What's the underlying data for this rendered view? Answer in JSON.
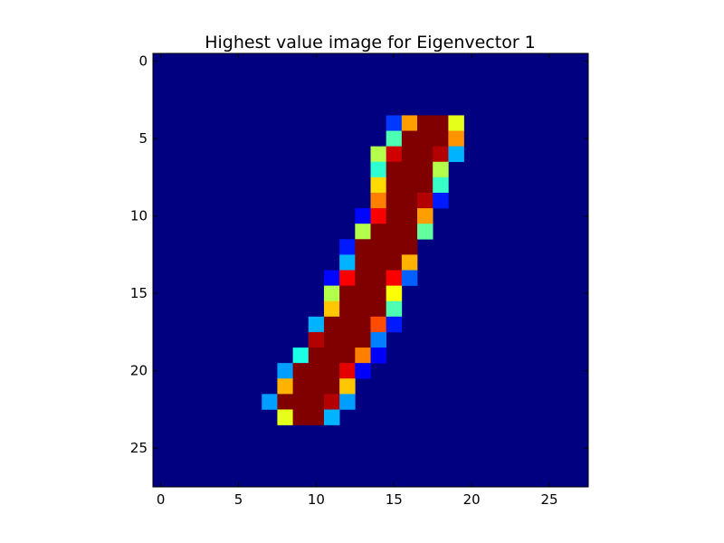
{
  "chart_data": {
    "type": "heatmap",
    "title": "Highest value image for Eigenvector 1",
    "xlabel": "",
    "ylabel": "",
    "rows": 28,
    "cols": 28,
    "xlim": [
      -0.5,
      27.5
    ],
    "ylim": [
      27.5,
      -0.5
    ],
    "x_ticks": [
      0,
      5,
      10,
      15,
      20,
      25
    ],
    "y_ticks": [
      0,
      5,
      10,
      15,
      20,
      25
    ],
    "x_tick_labels": [
      "0",
      "5",
      "10",
      "15",
      "20",
      "25"
    ],
    "y_tick_labels": [
      "0",
      "5",
      "10",
      "15",
      "20",
      "25"
    ],
    "colormap": "jet",
    "value_range": [
      0,
      1
    ],
    "background_value": 0.0,
    "grid": false,
    "cells": [
      [
        4,
        15,
        0.18
      ],
      [
        4,
        16,
        0.72
      ],
      [
        4,
        17,
        1.0
      ],
      [
        4,
        18,
        1.0
      ],
      [
        4,
        19,
        0.6
      ],
      [
        5,
        15,
        0.45
      ],
      [
        5,
        16,
        1.0
      ],
      [
        5,
        17,
        1.0
      ],
      [
        5,
        18,
        1.0
      ],
      [
        5,
        19,
        0.73
      ],
      [
        6,
        14,
        0.55
      ],
      [
        6,
        15,
        0.92
      ],
      [
        6,
        16,
        1.0
      ],
      [
        6,
        17,
        1.0
      ],
      [
        6,
        18,
        0.95
      ],
      [
        6,
        19,
        0.3
      ],
      [
        7,
        14,
        0.42
      ],
      [
        7,
        15,
        1.0
      ],
      [
        7,
        16,
        1.0
      ],
      [
        7,
        17,
        1.0
      ],
      [
        7,
        18,
        0.55
      ],
      [
        8,
        14,
        0.66
      ],
      [
        8,
        15,
        1.0
      ],
      [
        8,
        16,
        1.0
      ],
      [
        8,
        17,
        1.0
      ],
      [
        8,
        18,
        0.43
      ],
      [
        9,
        14,
        0.75
      ],
      [
        9,
        15,
        1.0
      ],
      [
        9,
        16,
        1.0
      ],
      [
        9,
        17,
        0.95
      ],
      [
        9,
        18,
        0.15
      ],
      [
        10,
        13,
        0.13
      ],
      [
        10,
        14,
        0.88
      ],
      [
        10,
        15,
        1.0
      ],
      [
        10,
        16,
        1.0
      ],
      [
        10,
        17,
        0.72
      ],
      [
        11,
        13,
        0.55
      ],
      [
        11,
        14,
        1.0
      ],
      [
        11,
        15,
        1.0
      ],
      [
        11,
        16,
        1.0
      ],
      [
        11,
        17,
        0.47
      ],
      [
        12,
        12,
        0.15
      ],
      [
        12,
        13,
        1.0
      ],
      [
        12,
        14,
        1.0
      ],
      [
        12,
        15,
        1.0
      ],
      [
        12,
        16,
        1.0
      ],
      [
        13,
        12,
        0.3
      ],
      [
        13,
        13,
        1.0
      ],
      [
        13,
        14,
        1.0
      ],
      [
        13,
        15,
        1.0
      ],
      [
        13,
        16,
        0.7
      ],
      [
        14,
        11,
        0.13
      ],
      [
        14,
        12,
        0.88
      ],
      [
        14,
        13,
        1.0
      ],
      [
        14,
        14,
        1.0
      ],
      [
        14,
        15,
        0.88
      ],
      [
        14,
        16,
        0.22
      ],
      [
        15,
        11,
        0.55
      ],
      [
        15,
        12,
        1.0
      ],
      [
        15,
        13,
        1.0
      ],
      [
        15,
        14,
        1.0
      ],
      [
        15,
        15,
        0.62
      ],
      [
        16,
        11,
        0.68
      ],
      [
        16,
        12,
        1.0
      ],
      [
        16,
        13,
        1.0
      ],
      [
        16,
        14,
        1.0
      ],
      [
        16,
        15,
        0.45
      ],
      [
        17,
        10,
        0.3
      ],
      [
        17,
        11,
        1.0
      ],
      [
        17,
        12,
        1.0
      ],
      [
        17,
        13,
        1.0
      ],
      [
        17,
        14,
        0.8
      ],
      [
        17,
        15,
        0.15
      ],
      [
        18,
        10,
        0.95
      ],
      [
        18,
        11,
        1.0
      ],
      [
        18,
        12,
        1.0
      ],
      [
        18,
        13,
        1.0
      ],
      [
        18,
        14,
        0.25
      ],
      [
        19,
        9,
        0.4
      ],
      [
        19,
        10,
        1.0
      ],
      [
        19,
        11,
        1.0
      ],
      [
        19,
        12,
        1.0
      ],
      [
        19,
        13,
        0.75
      ],
      [
        19,
        14,
        0.12
      ],
      [
        20,
        8,
        0.28
      ],
      [
        20,
        9,
        1.0
      ],
      [
        20,
        10,
        1.0
      ],
      [
        20,
        11,
        1.0
      ],
      [
        20,
        12,
        0.9
      ],
      [
        20,
        13,
        0.12
      ],
      [
        21,
        8,
        0.7
      ],
      [
        21,
        9,
        1.0
      ],
      [
        21,
        10,
        1.0
      ],
      [
        21,
        11,
        1.0
      ],
      [
        21,
        12,
        0.68
      ],
      [
        22,
        7,
        0.28
      ],
      [
        22,
        8,
        1.0
      ],
      [
        22,
        9,
        1.0
      ],
      [
        22,
        10,
        1.0
      ],
      [
        22,
        11,
        0.95
      ],
      [
        22,
        12,
        0.28
      ],
      [
        23,
        8,
        0.6
      ],
      [
        23,
        9,
        1.0
      ],
      [
        23,
        10,
        1.0
      ],
      [
        23,
        11,
        0.3
      ]
    ]
  }
}
